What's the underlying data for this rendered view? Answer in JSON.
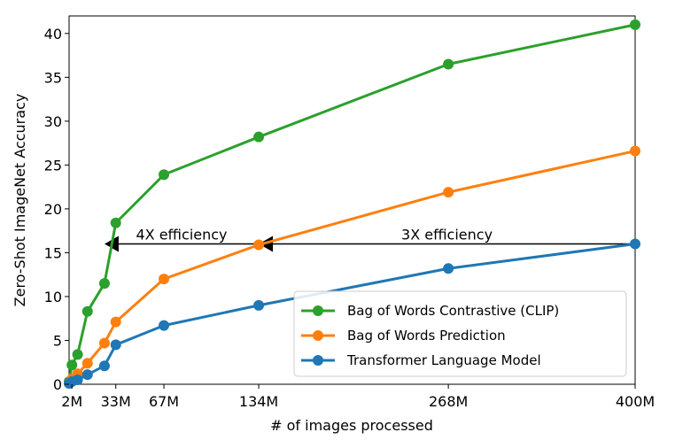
{
  "chart_data": {
    "type": "line",
    "xlabel": "# of images processed",
    "ylabel": "Zero-Shot ImageNet Accuracy",
    "xlim": [
      0,
      400
    ],
    "ylim": [
      0,
      42
    ],
    "x_unit_suffix": "M",
    "xticks": [
      2,
      33,
      67,
      134,
      268,
      400
    ],
    "xtick_labels": [
      "2M",
      "33M",
      "67M",
      "134M",
      "268M",
      "400M"
    ],
    "yticks": [
      0,
      5,
      10,
      15,
      20,
      25,
      30,
      35,
      40
    ],
    "grid": false,
    "legend_position": "bottom-right",
    "series": [
      {
        "name": "Bag of Words Contrastive (CLIP)",
        "color": "#2ca02c",
        "x": [
          0,
          2,
          6,
          13,
          25,
          33,
          67,
          134,
          268,
          400
        ],
        "y": [
          0.3,
          2.2,
          3.4,
          8.3,
          11.5,
          18.4,
          23.9,
          28.2,
          36.5,
          41.0
        ]
      },
      {
        "name": "Bag of Words Prediction",
        "color": "#ff7f0e",
        "x": [
          0,
          2,
          6,
          13,
          25,
          33,
          67,
          134,
          268,
          400
        ],
        "y": [
          0.1,
          0.6,
          1.2,
          2.4,
          4.7,
          7.1,
          12.0,
          15.9,
          21.9,
          26.6
        ]
      },
      {
        "name": "Transformer Language Model",
        "color": "#1f77b4",
        "x": [
          0,
          2,
          6,
          13,
          25,
          33,
          67,
          134,
          268,
          400
        ],
        "y": [
          0.1,
          0.3,
          0.5,
          1.1,
          2.1,
          4.5,
          6.7,
          9.0,
          13.2,
          16.0
        ]
      }
    ],
    "annotations": [
      {
        "text": "4X efficiency",
        "x_from": 134,
        "x_to": 25,
        "y": 16.0
      },
      {
        "text": "3X efficiency",
        "x_from": 400,
        "x_to": 134,
        "y": 16.0
      }
    ]
  }
}
